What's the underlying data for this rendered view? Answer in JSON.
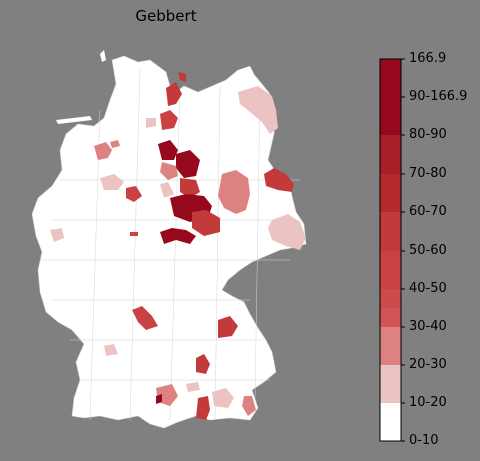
{
  "title": "Gebbert",
  "colorbar": {
    "labels": [
      "166.9",
      "90-166.9",
      "80-90",
      "70-80",
      "60-70",
      "50-60",
      "40-50",
      "30-40",
      "20-30",
      "10-20",
      "0-10"
    ],
    "bands": [
      {
        "label": "0-10",
        "color": "#ffffff"
      },
      {
        "label": "10-20",
        "color": "#ecc3c3"
      },
      {
        "label": "20-30",
        "color": "#dc8282"
      },
      {
        "label": "30-40",
        "color": "#d25454"
      },
      {
        "label": "40-50",
        "color": "#cf4a4a"
      },
      {
        "label": "50-60",
        "color": "#c94141"
      },
      {
        "label": "60-70",
        "color": "#c23a3a"
      },
      {
        "label": "70-80",
        "color": "#b52b2b"
      },
      {
        "label": "80-90",
        "color": "#a81e27"
      },
      {
        "label": "90-166.9",
        "color": "#96091c"
      }
    ]
  },
  "colors": {
    "background": "#808080",
    "land": "#ffffff",
    "border": "#c8c8c8"
  }
}
